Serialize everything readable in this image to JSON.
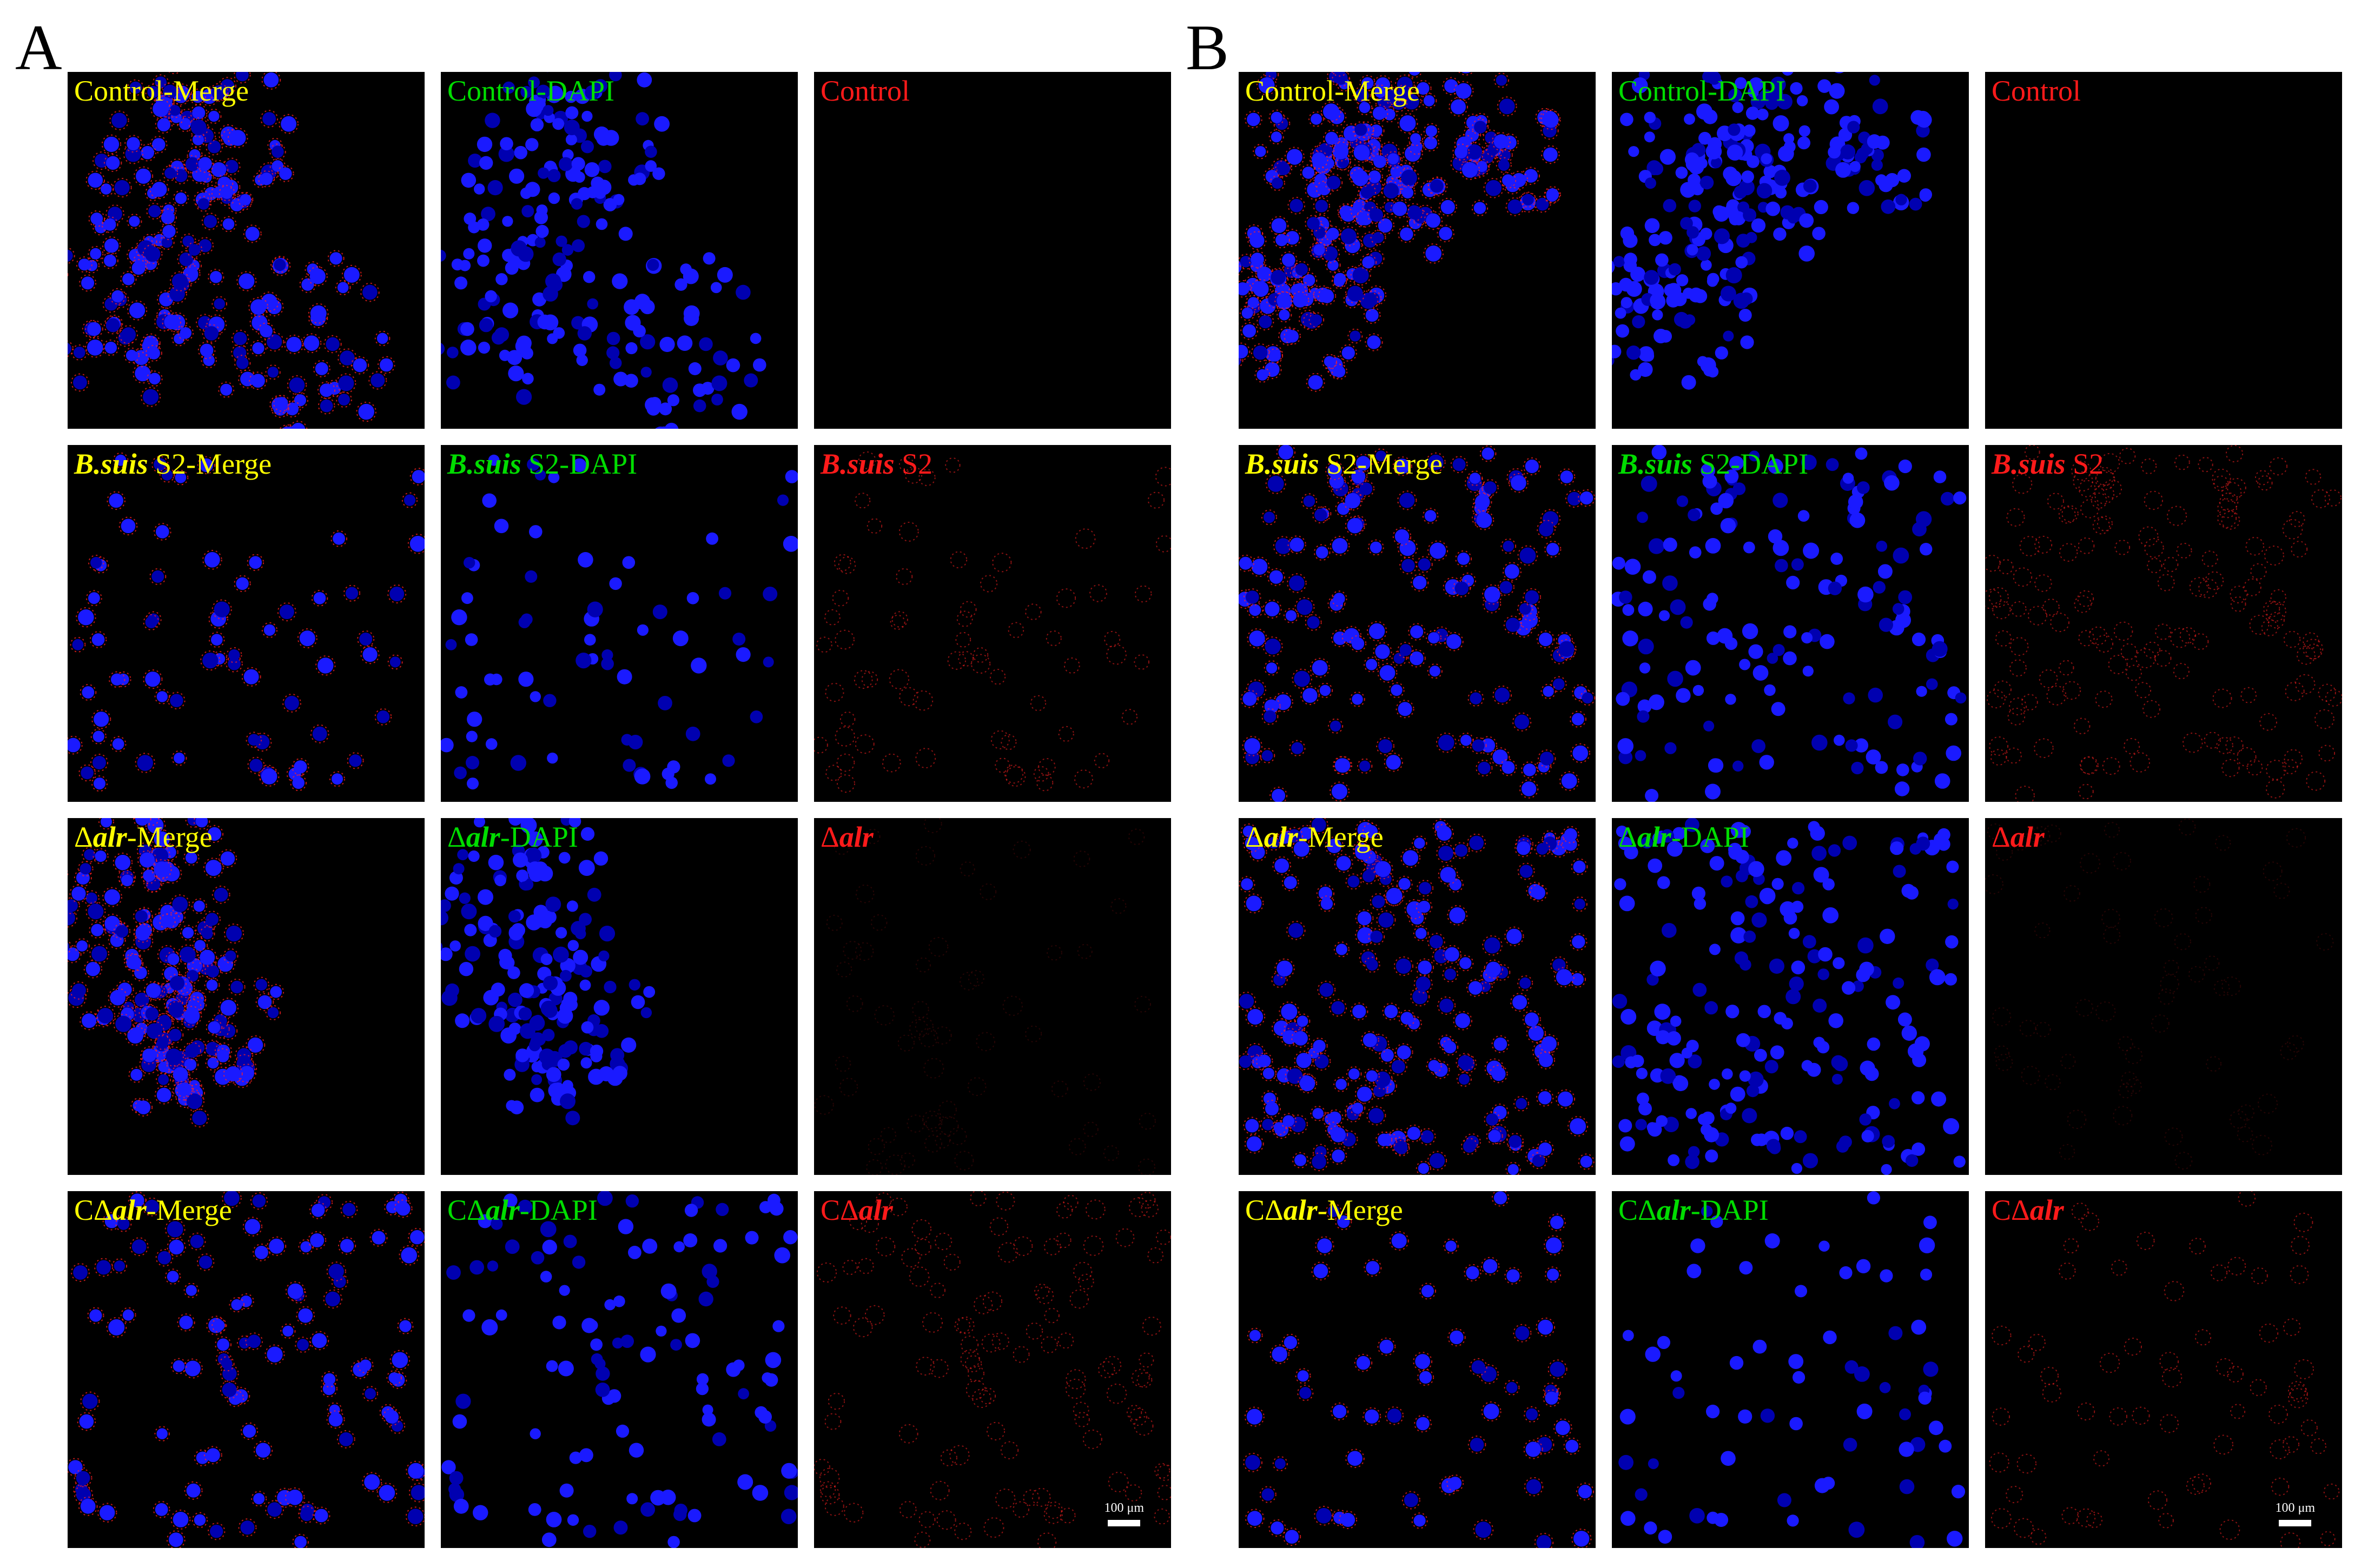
{
  "panels": [
    {
      "letter": "A",
      "rows": [
        [
          {
            "pre": "",
            "it": "",
            "post": "Control-Merge",
            "color": "yellow",
            "type": "merge",
            "seed": 11,
            "n": 210,
            "pattern": "cluster"
          },
          {
            "pre": "",
            "it": "",
            "post": "Control-DAPI",
            "color": "green",
            "type": "dapi",
            "seed": 11,
            "n": 210,
            "pattern": "cluster"
          },
          {
            "pre": "",
            "it": "",
            "post": "Control",
            "color": "red",
            "type": "red",
            "seed": 11,
            "n": 0,
            "pattern": "none"
          }
        ],
        [
          {
            "pre": "",
            "it": "B.suis",
            "post": " S2-Merge",
            "color": "yellow",
            "type": "merge",
            "seed": 23,
            "n": 70,
            "pattern": "sparse"
          },
          {
            "pre": "",
            "it": "B.suis",
            "post": " S2-DAPI",
            "color": "green",
            "type": "dapi",
            "seed": 23,
            "n": 70,
            "pattern": "sparse"
          },
          {
            "pre": "",
            "it": "B.suis",
            "post": " S2",
            "color": "red",
            "type": "red",
            "seed": 23,
            "n": 70,
            "pattern": "sparse"
          }
        ],
        [
          {
            "pre": "Δ",
            "it": "alr",
            "post": "-Merge",
            "color": "yellow",
            "type": "merge",
            "seed": 37,
            "n": 190,
            "pattern": "cluster"
          },
          {
            "pre": "Δ",
            "it": "alr",
            "post": "-DAPI",
            "color": "green",
            "type": "dapi",
            "seed": 37,
            "n": 190,
            "pattern": "cluster"
          },
          {
            "pre": "Δ",
            "it": "alr",
            "post": "",
            "color": "red",
            "type": "faint",
            "seed": 37,
            "n": 60,
            "pattern": "sparse"
          }
        ],
        [
          {
            "pre": "CΔ",
            "it": "alr",
            "post": "-Merge",
            "color": "yellow",
            "type": "merge",
            "seed": 51,
            "n": 110,
            "pattern": "sparse"
          },
          {
            "pre": "CΔ",
            "it": "alr",
            "post": "-DAPI",
            "color": "green",
            "type": "dapi",
            "seed": 51,
            "n": 110,
            "pattern": "sparse"
          },
          {
            "pre": "CΔ",
            "it": "alr",
            "post": "",
            "color": "red",
            "type": "red",
            "seed": 51,
            "n": 110,
            "pattern": "sparse",
            "scalebar": "100 μm"
          }
        ]
      ]
    },
    {
      "letter": "B",
      "rows": [
        [
          {
            "pre": "",
            "it": "",
            "post": "Control-Merge",
            "color": "yellow",
            "type": "merge",
            "seed": 67,
            "n": 260,
            "pattern": "cluster"
          },
          {
            "pre": "",
            "it": "",
            "post": "Control-DAPI",
            "color": "green",
            "type": "dapi",
            "seed": 67,
            "n": 260,
            "pattern": "cluster"
          },
          {
            "pre": "",
            "it": "",
            "post": "Control",
            "color": "red",
            "type": "red",
            "seed": 67,
            "n": 0,
            "pattern": "none"
          }
        ],
        [
          {
            "pre": "",
            "it": "B.suis",
            "post": " S2-Merge",
            "color": "yellow",
            "type": "merge",
            "seed": 79,
            "n": 150,
            "pattern": "sparse"
          },
          {
            "pre": "",
            "it": "B.suis",
            "post": " S2-DAPI",
            "color": "green",
            "type": "dapi",
            "seed": 79,
            "n": 150,
            "pattern": "sparse"
          },
          {
            "pre": "",
            "it": "B.suis",
            "post": " S2",
            "color": "red",
            "type": "red",
            "seed": 79,
            "n": 150,
            "pattern": "sparse"
          }
        ],
        [
          {
            "pre": "Δ",
            "it": "alr",
            "post": "-Merge",
            "color": "yellow",
            "type": "merge",
            "seed": 91,
            "n": 200,
            "pattern": "sparse"
          },
          {
            "pre": "Δ",
            "it": "alr",
            "post": "-DAPI",
            "color": "green",
            "type": "dapi",
            "seed": 91,
            "n": 200,
            "pattern": "sparse"
          },
          {
            "pre": "Δ",
            "it": "alr",
            "post": "",
            "color": "red",
            "type": "faint",
            "seed": 91,
            "n": 60,
            "pattern": "sparse"
          }
        ],
        [
          {
            "pre": "CΔ",
            "it": "alr",
            "post": "-Merge",
            "color": "yellow",
            "type": "merge",
            "seed": 103,
            "n": 65,
            "pattern": "sparse"
          },
          {
            "pre": "CΔ",
            "it": "alr",
            "post": "-DAPI",
            "color": "green",
            "type": "dapi",
            "seed": 103,
            "n": 65,
            "pattern": "sparse"
          },
          {
            "pre": "CΔ",
            "it": "alr",
            "post": "",
            "color": "red",
            "type": "red",
            "seed": 103,
            "n": 65,
            "pattern": "sparse",
            "scalebar": "100 μm"
          }
        ]
      ]
    }
  ],
  "colors": {
    "nucleus": "#1a1aff",
    "nucleus_dark": "#0000b0",
    "signal": "#ff2020",
    "label_yellow": "#ffff00",
    "label_green": "#00dd00",
    "label_red": "#ff1a1a"
  }
}
